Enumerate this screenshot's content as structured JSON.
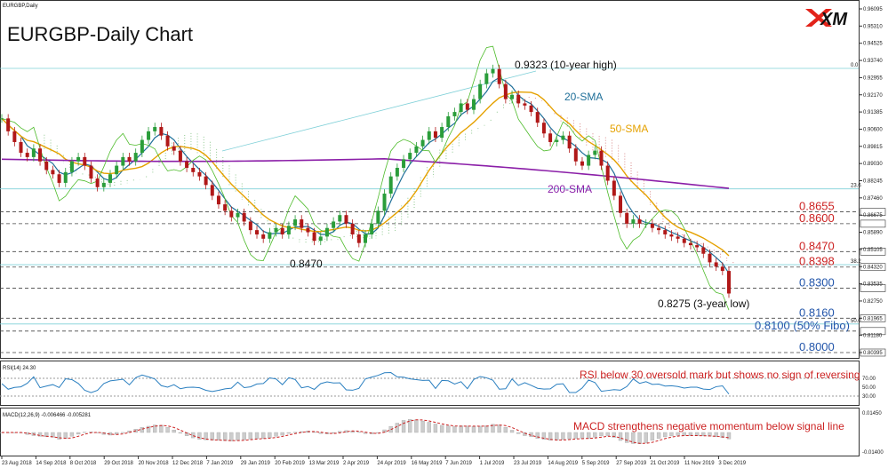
{
  "chart_data": {
    "type": "line",
    "symbol_label": "EURGBP,Daily",
    "title": "EURGBP-Daily Chart",
    "logo_text": "XM",
    "price_axis": {
      "ylim": [
        0.8,
        0.96
      ],
      "ticks": [
        "0.96095",
        "0.95310",
        "0.94525",
        "0.93740",
        "0.92955",
        "0.92170",
        "0.91385",
        "0.90600",
        "0.89815",
        "0.89030",
        "0.88245",
        "0.87460",
        "0.86675",
        "0.85890",
        "0.85105",
        "0.84320",
        "0.83535",
        "0.82750",
        "0.81965",
        "0.81180",
        "0.80395"
      ]
    },
    "date_axis": [
      "23 Aug 2018",
      "14 Sep 2018",
      "8 Oct 2018",
      "29 Oct 2018",
      "20 Nov 2018",
      "12 Dec 2018",
      "7 Jan 2019",
      "29 Jan 2019",
      "20 Feb 2019",
      "13 Mar 2019",
      "2 Apr 2019",
      "24 Apr 2019",
      "16 May 2019",
      "7 Jun 2019",
      "1 Jul 2019",
      "23 Jul 2019",
      "14 Aug 2019",
      "5 Sep 2019",
      "27 Sep 2019",
      "21 Oct 2019",
      "11 Nov 2019",
      "3 Dec 2019"
    ],
    "levels": [
      {
        "value": "0.8655",
        "color": "#cc2222"
      },
      {
        "value": "0.8600",
        "color": "#cc2222"
      },
      {
        "value": "0.8470",
        "color": "#cc2222"
      },
      {
        "value": "0.8398",
        "color": "#cc2222"
      },
      {
        "value": "0.8300",
        "color": "#2255aa"
      },
      {
        "value": "0.8160",
        "color": "#2255aa"
      },
      {
        "value": "0.8100 (50% Fibo)",
        "color": "#2255aa"
      },
      {
        "value": "0.8000",
        "color": "#2255aa"
      }
    ],
    "fib_labels": [
      "0.0",
      "23.6",
      "38.2",
      "50.0"
    ],
    "annotations": {
      "high": "0.9323 (10-year high)",
      "low": "0.8275 (3-year low)",
      "support": "0.8470"
    },
    "series": [
      {
        "name": "20-SMA",
        "color": "#1f6f99"
      },
      {
        "name": "50-SMA",
        "color": "#e5a100"
      },
      {
        "name": "200-SMA",
        "color": "#8b1fa8"
      }
    ],
    "close_series": [
      0.909,
      0.903,
      0.898,
      0.893,
      0.891,
      0.895,
      0.889,
      0.885,
      0.883,
      0.879,
      0.884,
      0.889,
      0.891,
      0.887,
      0.881,
      0.877,
      0.879,
      0.883,
      0.887,
      0.891,
      0.889,
      0.893,
      0.899,
      0.903,
      0.905,
      0.901,
      0.896,
      0.894,
      0.889,
      0.886,
      0.884,
      0.882,
      0.878,
      0.873,
      0.869,
      0.866,
      0.863,
      0.865,
      0.861,
      0.857,
      0.855,
      0.853,
      0.856,
      0.858,
      0.855,
      0.859,
      0.862,
      0.858,
      0.856,
      0.852,
      0.854,
      0.858,
      0.861,
      0.864,
      0.86,
      0.855,
      0.851,
      0.855,
      0.86,
      0.866,
      0.874,
      0.882,
      0.886,
      0.89,
      0.893,
      0.896,
      0.899,
      0.903,
      0.9,
      0.905,
      0.91,
      0.912,
      0.916,
      0.913,
      0.918,
      0.925,
      0.93,
      0.932,
      0.925,
      0.918,
      0.92,
      0.916,
      0.915,
      0.912,
      0.907,
      0.902,
      0.898,
      0.899,
      0.901,
      0.895,
      0.889,
      0.887,
      0.892,
      0.894,
      0.887,
      0.88,
      0.873,
      0.865,
      0.86,
      0.862,
      0.86,
      0.86,
      0.858,
      0.857,
      0.855,
      0.854,
      0.853,
      0.851,
      0.85,
      0.849,
      0.846,
      0.842,
      0.84,
      0.838,
      0.8275
    ],
    "rsi": {
      "label": "RSI(14) 24.30",
      "ticks": [
        "70.00",
        "50.00",
        "30.00"
      ],
      "note": "RSI below 30 oversold mark but shows no sign of reversing"
    },
    "macd": {
      "label": "MACD(12,26,9) -0.006466 -0.005281",
      "ticks": [
        "0.01450",
        "-0.01400"
      ],
      "note": "MACD strengthens negative momentum below signal line"
    }
  }
}
